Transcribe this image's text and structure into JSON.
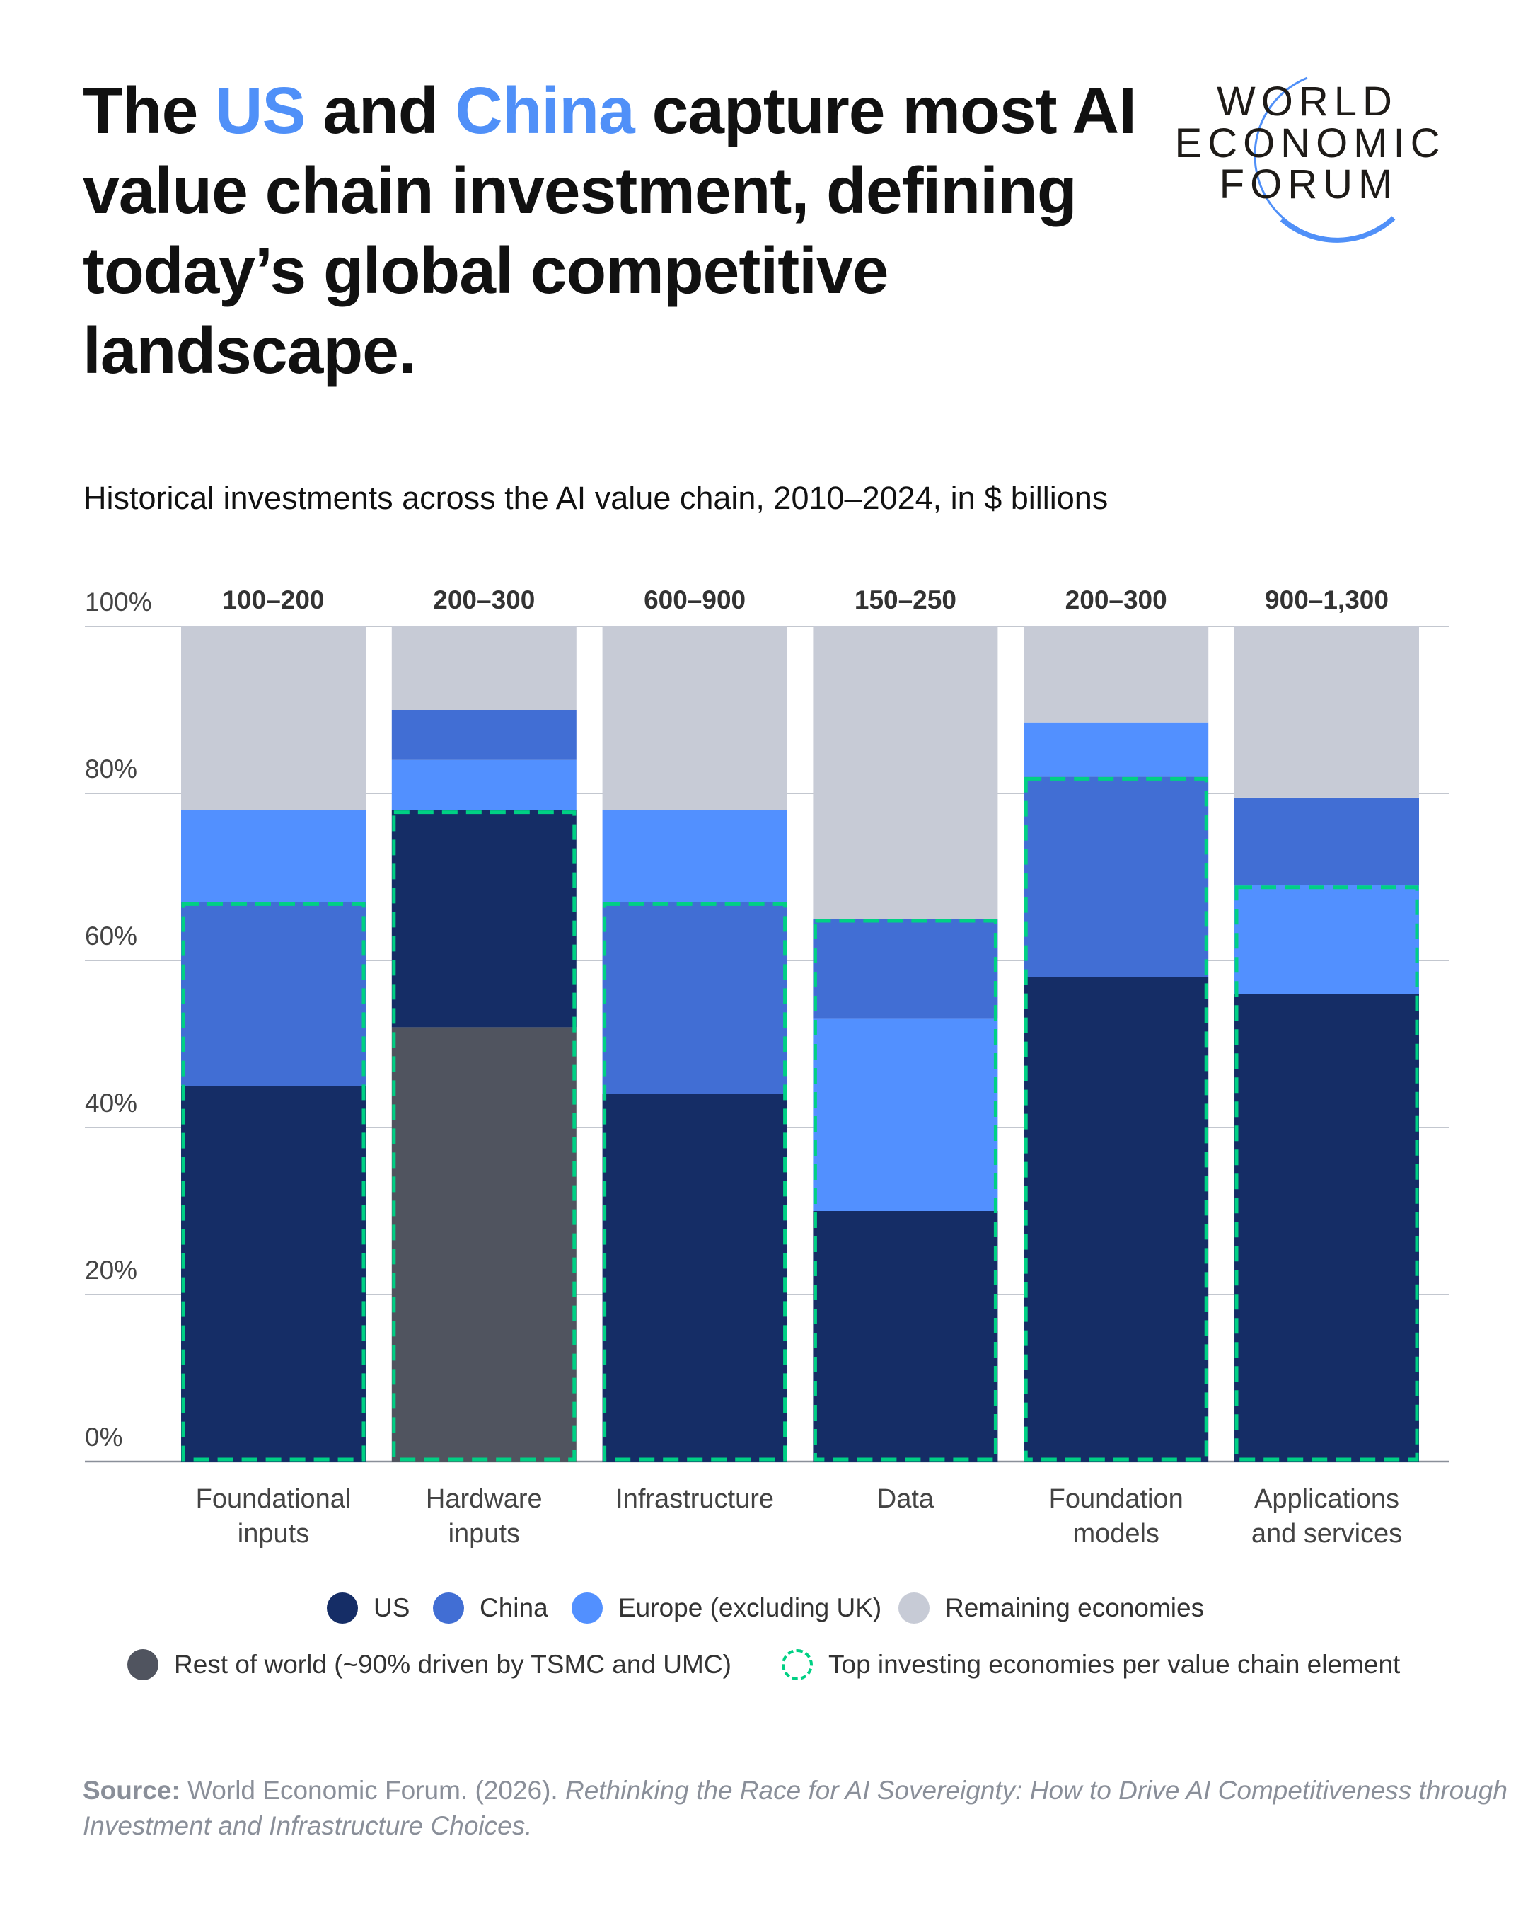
{
  "title": {
    "part1": "The ",
    "us": "US",
    "part2": " and ",
    "china": "China",
    "part3": " capture most AI value chain investment, defining today’s global competitive landscape."
  },
  "subtitle": "Historical investments across the AI value chain, 2010–2024, in $ billions",
  "logo": {
    "text": [
      "WORLD",
      "ECONOMIC",
      "FORUM"
    ]
  },
  "colors": {
    "US": "#152D66",
    "China": "#416ED4",
    "Europe": "#5290FF",
    "Remaining": "#C7CBD6",
    "RestOfWorld": "#50545F",
    "highlight": "#00D084",
    "accent": "#5090F8"
  },
  "chart_data": {
    "type": "bar",
    "stacked": true,
    "normalized": true,
    "subtitle": "Historical investments across the AI value chain, 2010–2024, in $ billions",
    "categories": [
      [
        "Foundational",
        "inputs"
      ],
      [
        "Hardware",
        "inputs"
      ],
      [
        "Infrastructure"
      ],
      [
        "Data"
      ],
      [
        "Foundation",
        "models"
      ],
      [
        "Applications",
        "and services"
      ]
    ],
    "totals": [
      "100–200",
      "200–300",
      "600–900",
      "150–250",
      "200–300",
      "900–1,300"
    ],
    "yticks": [
      "0%",
      "20%",
      "40%",
      "60%",
      "80%",
      "100%"
    ],
    "ylim": [
      0,
      100
    ],
    "grid": true,
    "stacks": [
      [
        {
          "s": "US",
          "v": 45
        },
        {
          "s": "China",
          "v": 22
        },
        {
          "s": "Europe",
          "v": 11
        },
        {
          "s": "Remaining",
          "v": 22
        }
      ],
      [
        {
          "s": "RestOfWorld",
          "v": 52
        },
        {
          "s": "US",
          "v": 26
        },
        {
          "s": "Europe",
          "v": 6
        },
        {
          "s": "China",
          "v": 6
        },
        {
          "s": "Remaining",
          "v": 10
        }
      ],
      [
        {
          "s": "US",
          "v": 44
        },
        {
          "s": "China",
          "v": 23
        },
        {
          "s": "Europe",
          "v": 11
        },
        {
          "s": "Remaining",
          "v": 22
        }
      ],
      [
        {
          "s": "US",
          "v": 30
        },
        {
          "s": "Europe",
          "v": 23
        },
        {
          "s": "China",
          "v": 12
        },
        {
          "s": "Remaining",
          "v": 35
        }
      ],
      [
        {
          "s": "US",
          "v": 58
        },
        {
          "s": "China",
          "v": 24
        },
        {
          "s": "Europe",
          "v": 6.5
        },
        {
          "s": "Remaining",
          "v": 11.5
        }
      ],
      [
        {
          "s": "US",
          "v": 56
        },
        {
          "s": "Europe",
          "v": 13
        },
        {
          "s": "China",
          "v": 10.5
        },
        {
          "s": "Remaining",
          "v": 20.5
        }
      ]
    ],
    "top_investing_share": [
      67,
      78,
      67,
      65,
      82,
      69
    ],
    "legend": [
      {
        "key": "US",
        "label": "US"
      },
      {
        "key": "China",
        "label": "China"
      },
      {
        "key": "Europe",
        "label": "Europe (excluding UK)"
      },
      {
        "key": "Remaining",
        "label": "Remaining economies"
      },
      {
        "key": "RestOfWorld",
        "label": "Rest of world (~90% driven by TSMC and UMC)"
      },
      {
        "key": "highlight",
        "label": "Top investing economies per value chain element"
      }
    ],
    "legend_placement": "bottom"
  },
  "source": {
    "label": "Source:",
    "text": " World Economic Forum. (2026). ",
    "italic": "Rethinking the Race for AI Sovereignty: How to Drive AI Competitiveness through Investment and Infrastructure Choices."
  }
}
